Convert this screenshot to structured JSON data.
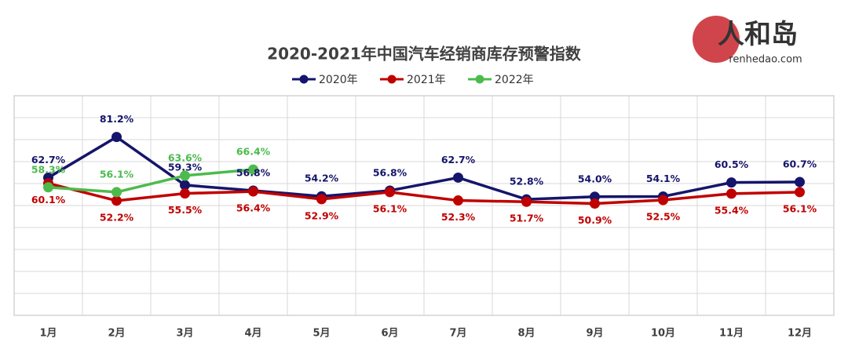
{
  "chart_data": {
    "type": "line",
    "title": "2020-2021年中国汽车经销商库存预警指数",
    "watermark": {
      "logo": "人和岛",
      "site": "renhedao.com"
    },
    "categories": [
      "1月",
      "2月",
      "3月",
      "4月",
      "5月",
      "6月",
      "7月",
      "8月",
      "9月",
      "10月",
      "11月",
      "12月"
    ],
    "series": [
      {
        "name": "2020年",
        "color": "#15156b",
        "label_side": "above",
        "values": [
          62.7,
          81.2,
          59.3,
          56.8,
          54.2,
          56.8,
          62.7,
          52.8,
          54.0,
          54.1,
          60.5,
          60.7
        ],
        "value_labels": [
          "62.7%",
          "81.2%",
          "59.3%",
          "56.8%",
          "54.2%",
          "56.8%",
          "62.7%",
          "52.8%",
          "54.0%",
          "54.1%",
          "60.5%",
          "60.7%"
        ]
      },
      {
        "name": "2021年",
        "color": "#c00000",
        "label_side": "below",
        "values": [
          60.1,
          52.2,
          55.5,
          56.4,
          52.9,
          56.1,
          52.3,
          51.7,
          50.9,
          52.5,
          55.4,
          56.1
        ],
        "value_labels": [
          "60.1%",
          "52.2%",
          "55.5%",
          "56.4%",
          "52.9%",
          "56.1%",
          "52.3%",
          "51.7%",
          "50.9%",
          "52.5%",
          "55.4%",
          "56.1%"
        ]
      },
      {
        "name": "2022年",
        "color": "#4cbb4c",
        "label_side": "above",
        "values": [
          58.3,
          56.1,
          63.6,
          66.4,
          null,
          null,
          null,
          null,
          null,
          null,
          null,
          null
        ],
        "value_labels": [
          "58.3%",
          "56.1%",
          "63.6%",
          "66.4%",
          null,
          null,
          null,
          null,
          null,
          null,
          null,
          null
        ]
      }
    ],
    "ylim": [
      0,
      100
    ],
    "yticks": [
      0,
      10,
      20,
      30,
      40,
      50,
      60,
      70,
      80,
      90,
      100
    ],
    "grid": true,
    "legend": "top"
  }
}
